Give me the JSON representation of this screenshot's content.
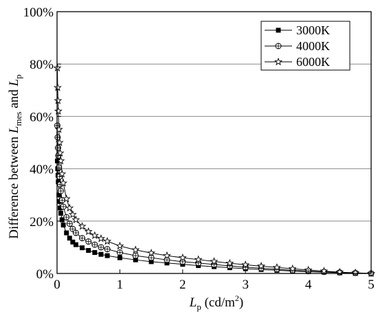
{
  "chart_data": {
    "type": "line",
    "title": "",
    "xlabel": {
      "main": "L",
      "sub": "p",
      "unit_prefix": " (cd/m",
      "unit_sup": "2",
      "unit_suffix": ")"
    },
    "ylabel": {
      "text1": "Difference between ",
      "var1": "L",
      "sub1": "mes",
      "text2": " and ",
      "var2": "L",
      "sub2": "p"
    },
    "xlim": [
      0,
      5
    ],
    "ylim": [
      0,
      100
    ],
    "xticks": [
      "0",
      "1",
      "2",
      "3",
      "4",
      "5"
    ],
    "yticks": [
      "0%",
      "20%",
      "40%",
      "60%",
      "80%",
      "100%"
    ],
    "grid": "horizontal",
    "legend_position": "top-right",
    "series": [
      {
        "name": "3000K",
        "marker": "square",
        "color": "#000000",
        "x": [
          0.005,
          0.01,
          0.015,
          0.02,
          0.03,
          0.04,
          0.05,
          0.06,
          0.08,
          0.1,
          0.15,
          0.2,
          0.25,
          0.3,
          0.4,
          0.5,
          0.6,
          0.7,
          0.8,
          1.0,
          1.25,
          1.5,
          1.75,
          2.0,
          2.25,
          2.5,
          2.75,
          3.0,
          3.25,
          3.5,
          3.75,
          4.0,
          4.25,
          4.5,
          4.75,
          5.0
        ],
        "y": [
          43.0,
          40.0,
          37.5,
          35.0,
          30.0,
          27.5,
          25.0,
          23.0,
          20.5,
          18.5,
          15.5,
          13.5,
          12.0,
          11.0,
          9.8,
          8.8,
          8.0,
          7.3,
          6.8,
          6.0,
          5.2,
          4.5,
          4.0,
          3.5,
          3.0,
          2.6,
          2.2,
          1.8,
          1.5,
          1.2,
          0.9,
          0.7,
          0.5,
          0.3,
          0.15,
          0.0
        ]
      },
      {
        "name": "4000K",
        "marker": "circle-plus",
        "color": "#000000",
        "x": [
          0.005,
          0.01,
          0.015,
          0.02,
          0.03,
          0.04,
          0.05,
          0.06,
          0.08,
          0.1,
          0.15,
          0.2,
          0.25,
          0.3,
          0.4,
          0.5,
          0.6,
          0.7,
          0.8,
          1.0,
          1.25,
          1.5,
          1.75,
          2.0,
          2.25,
          2.5,
          2.75,
          3.0,
          3.25,
          3.5,
          3.75,
          4.0,
          4.25,
          4.5,
          4.75,
          5.0
        ],
        "y": [
          56.5,
          52.0,
          48.0,
          45.0,
          40.5,
          37.0,
          34.0,
          31.5,
          28.0,
          25.5,
          21.5,
          19.0,
          17.0,
          15.5,
          13.5,
          12.2,
          11.0,
          10.0,
          9.3,
          8.0,
          6.8,
          6.0,
          5.2,
          4.5,
          4.0,
          3.4,
          2.9,
          2.4,
          2.0,
          1.6,
          1.2,
          0.9,
          0.6,
          0.4,
          0.2,
          0.0
        ]
      },
      {
        "name": "6000K",
        "marker": "star",
        "color": "#000000",
        "x": [
          0.005,
          0.01,
          0.015,
          0.02,
          0.03,
          0.04,
          0.05,
          0.06,
          0.08,
          0.1,
          0.15,
          0.2,
          0.25,
          0.3,
          0.4,
          0.5,
          0.6,
          0.7,
          0.8,
          1.0,
          1.25,
          1.5,
          1.75,
          2.0,
          2.25,
          2.5,
          2.75,
          3.0,
          3.25,
          3.5,
          3.75,
          4.0,
          4.25,
          4.5,
          4.75,
          5.0
        ],
        "y": [
          78.5,
          71.0,
          66.0,
          62.0,
          55.0,
          50.0,
          46.0,
          43.0,
          38.0,
          34.5,
          28.5,
          25.0,
          22.5,
          20.5,
          18.0,
          16.0,
          14.5,
          13.3,
          12.3,
          10.5,
          9.0,
          7.8,
          6.8,
          6.0,
          5.3,
          4.6,
          3.9,
          3.3,
          2.8,
          2.3,
          1.8,
          1.3,
          0.9,
          0.5,
          0.25,
          0.0
        ]
      }
    ]
  }
}
